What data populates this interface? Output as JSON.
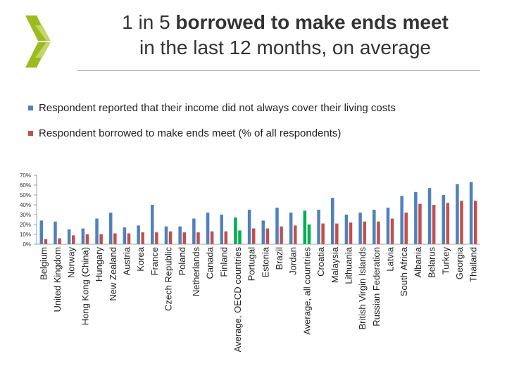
{
  "title": {
    "line1_pre": "1 in 5 ",
    "line1_bold": "borrowed to make ends meet",
    "line2": "in the last 12 months, on average"
  },
  "colors": {
    "series1": "#4f81bd",
    "series2": "#c0504d",
    "average": "#00b050",
    "logo": "#9bbb1f"
  },
  "chart_data": {
    "type": "bar",
    "title": "1 in 5 borrowed to make ends meet in the last 12 months, on average",
    "xlabel": "",
    "ylabel": "",
    "ylim": [
      0,
      70
    ],
    "yticks": [
      "0%",
      "10%",
      "20%",
      "30%",
      "40%",
      "50%",
      "60%",
      "70%"
    ],
    "legend_position": "top",
    "grid": false,
    "categories": [
      "Belgium",
      "United Kingdom",
      "Norway",
      "Hong Kong (China)",
      "Hungary",
      "New Zealand",
      "Austria",
      "Korea",
      "France",
      "Czech Republic",
      "Poland",
      "Netherlands",
      "Canada",
      "Finland",
      "Average, OECD countries",
      "Portugal",
      "Estonia",
      "Brazil",
      "Jordan",
      "Average, all countries",
      "Croatia",
      "Malaysia",
      "Lithuania",
      "British Virgin Islands",
      "Russian Federation",
      "Latvia",
      "South Africa",
      "Albania",
      "Belarus",
      "Turkey",
      "Georgia",
      "Thailand"
    ],
    "highlight_categories": [
      "Average, OECD countries",
      "Average, all countries"
    ],
    "series": [
      {
        "name": "Respondent reported that their income did not always cover their living costs",
        "values": [
          24,
          23,
          15,
          16,
          26,
          32,
          17,
          19,
          40,
          18,
          18,
          26,
          32,
          30,
          27,
          35,
          24,
          37,
          32,
          34,
          35,
          47,
          30,
          32,
          35,
          37,
          49,
          53,
          57,
          50,
          61,
          63
        ]
      },
      {
        "name": "Respondent borrowed to make ends meet (% of all respondents)",
        "values": [
          5,
          6,
          9,
          10,
          10,
          11,
          11,
          12,
          12,
          13,
          12,
          12,
          13,
          13,
          14,
          16,
          16,
          18,
          19,
          20,
          21,
          21,
          22,
          23,
          23,
          26,
          32,
          41,
          40,
          42,
          44,
          44
        ]
      }
    ]
  }
}
